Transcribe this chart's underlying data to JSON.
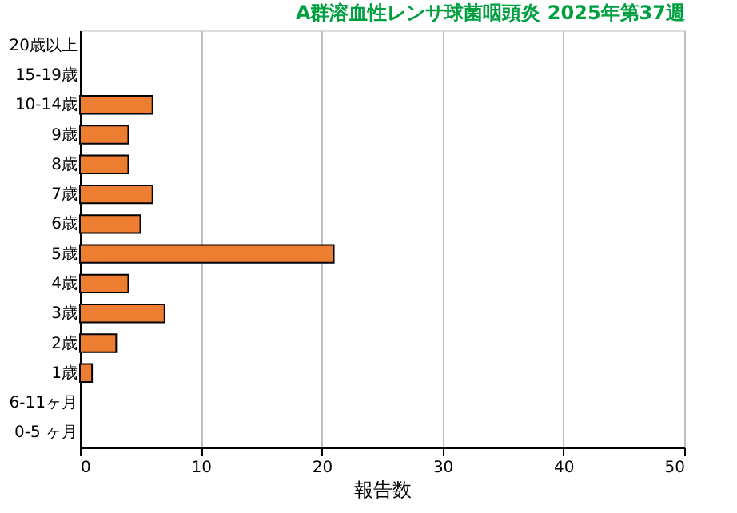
{
  "chart_data": {
    "type": "bar",
    "orientation": "horizontal",
    "title": "A群溶血性レンサ球菌咽頭炎 2025年第37週",
    "xlabel": "報告数",
    "categories": [
      "20歳以上",
      "15-19歳",
      "10-14歳",
      "9歳",
      "8歳",
      "7歳",
      "6歳",
      "5歳",
      "4歳",
      "3歳",
      "2歳",
      "1歳",
      "6-11ヶ月",
      "0-5 ヶ月"
    ],
    "values": [
      0,
      0,
      6,
      4,
      4,
      6,
      5,
      21,
      4,
      7,
      3,
      1,
      0,
      0
    ],
    "color": "#ed7d31",
    "xlim": [
      0,
      50
    ],
    "xticks": [
      0,
      10,
      20,
      30,
      40,
      50
    ],
    "grid": "x"
  }
}
